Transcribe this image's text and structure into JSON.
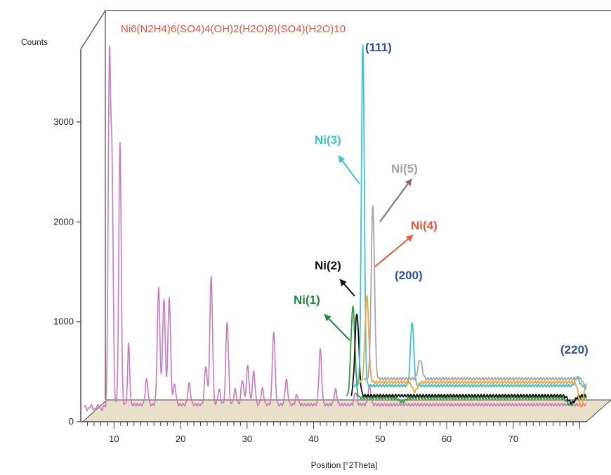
{
  "chart_data": {
    "type": "line",
    "title": "Ni6(N2H4)6(SO4)4(OH)2(H2O)8)(SO4)(H2O)10",
    "xlabel": "Position [°2Theta]",
    "ylabel": "Counts",
    "xlim": [
      5,
      81
    ],
    "ylim": [
      0,
      3800
    ],
    "x_ticks": [
      10,
      20,
      30,
      40,
      50,
      60,
      70
    ],
    "y_ticks": [
      0,
      1000,
      2000,
      3000
    ],
    "grid": false,
    "style": "3d-offset",
    "series": [
      {
        "name": "Ni(1)",
        "color": "#2e9e3e",
        "baseline": 240,
        "peaks": [
          [
            45.9,
            1150,
            0.3
          ],
          [
            53.3,
            200,
            0.5
          ],
          [
            78.6,
            170,
            0.5
          ]
        ]
      },
      {
        "name": "Ni(2)",
        "color": "#111111",
        "baseline": 260,
        "peaks": [
          [
            46.5,
            1080,
            0.3
          ],
          [
            53.6,
            260,
            0.4
          ],
          [
            78.8,
            190,
            0.5
          ]
        ]
      },
      {
        "name": "Ni(3)",
        "color": "#3cc6c8",
        "baseline": 360,
        "peaks": [
          [
            47.4,
            3780,
            0.22
          ],
          [
            54.8,
            1000,
            0.25
          ],
          [
            79.6,
            450,
            0.3
          ]
        ]
      },
      {
        "name": "Ni(4)",
        "color": "#f4a640",
        "baseline": 395,
        "peaks": [
          [
            48.0,
            1250,
            0.28
          ],
          [
            55.2,
            300,
            0.35
          ],
          [
            80.2,
            140,
            0.35
          ]
        ]
      },
      {
        "name": "Ni(5)",
        "color": "#a8a8a8",
        "baseline": 430,
        "peaks": [
          [
            48.9,
            2150,
            0.25
          ],
          [
            56.0,
            620,
            0.3
          ],
          [
            80.9,
            330,
            0.3
          ]
        ]
      },
      {
        "name": "Ni6(N2H4)6(SO4)4(OH)2(H2O)8)(SO4)(H2O)10",
        "color": "#c77bc0",
        "baseline": 170,
        "peaks": [
          [
            9.3,
            3530,
            0.18
          ],
          [
            9.7,
            2450,
            0.18
          ],
          [
            10.9,
            2800,
            0.18
          ],
          [
            12.2,
            780,
            0.15
          ],
          [
            14.9,
            420,
            0.2
          ],
          [
            16.7,
            1330,
            0.2
          ],
          [
            17.5,
            1230,
            0.2
          ],
          [
            18.3,
            1250,
            0.2
          ],
          [
            19.1,
            370,
            0.2
          ],
          [
            21.3,
            380,
            0.2
          ],
          [
            23.8,
            560,
            0.2
          ],
          [
            24.6,
            1450,
            0.2
          ],
          [
            25.8,
            320,
            0.2
          ],
          [
            27.0,
            1000,
            0.2
          ],
          [
            28.2,
            320,
            0.2
          ],
          [
            29.3,
            420,
            0.2
          ],
          [
            30.1,
            560,
            0.2
          ],
          [
            31.0,
            500,
            0.2
          ],
          [
            32.3,
            330,
            0.2
          ],
          [
            34.0,
            900,
            0.2
          ],
          [
            35.9,
            420,
            0.2
          ],
          [
            37.5,
            270,
            0.2
          ],
          [
            41.0,
            720,
            0.2
          ],
          [
            43.3,
            320,
            0.2
          ],
          [
            46.3,
            300,
            0.2
          ],
          [
            48.4,
            360,
            0.2
          ]
        ]
      }
    ],
    "annotations": [
      {
        "text": "(111)",
        "color": "#2f4f9f"
      },
      {
        "text": "(200)",
        "color": "#2f4f9f"
      },
      {
        "text": "(220)",
        "color": "#2f4f9f"
      },
      {
        "text": "Ni(1)",
        "color": "#1e8a35"
      },
      {
        "text": "Ni(2)",
        "color": "#111111"
      },
      {
        "text": "Ni(3)",
        "color": "#3cc6c8"
      },
      {
        "text": "Ni(4)",
        "color": "#e5583a"
      },
      {
        "text": "Ni(5)",
        "color": "#a3a3a3"
      }
    ]
  }
}
